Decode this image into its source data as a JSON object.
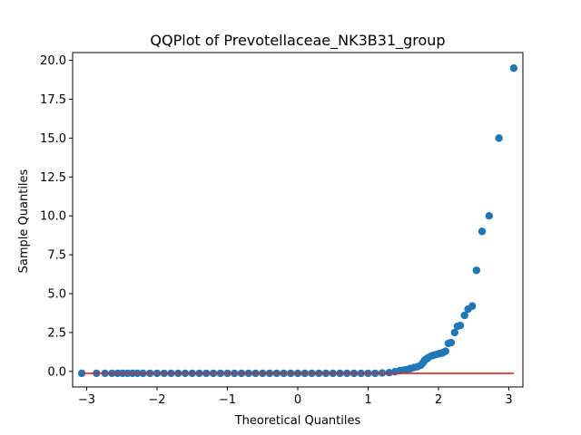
{
  "chart_data": {
    "type": "scatter",
    "title": "QQPlot of Prevotellaceae_NK3B31_group",
    "xlabel": "Theoretical Quantiles",
    "ylabel": "Sample Quantiles",
    "xlim": [
      -3.2,
      3.2
    ],
    "ylim": [
      -1.0,
      20.5
    ],
    "xticks": [
      -3,
      -2,
      -1,
      0,
      1,
      2,
      3
    ],
    "xtick_labels": [
      "−3",
      "−2",
      "−1",
      "0",
      "1",
      "2",
      "3"
    ],
    "yticks": [
      0.0,
      2.5,
      5.0,
      7.5,
      10.0,
      12.5,
      15.0,
      17.5,
      20.0
    ],
    "ytick_labels": [
      "0.0",
      "2.5",
      "5.0",
      "7.5",
      "10.0",
      "12.5",
      "15.0",
      "17.5",
      "20.0"
    ],
    "grid": false,
    "marker_color": "#1f77b4",
    "reference_line": {
      "color": "#d62728",
      "x": [
        -3.07,
        3.07
      ],
      "y": [
        -0.12,
        -0.12
      ]
    },
    "series": [
      {
        "points": [
          [
            -3.07,
            -0.12
          ],
          [
            -2.86,
            -0.12
          ],
          [
            -2.74,
            -0.12
          ],
          [
            -2.64,
            -0.12
          ],
          [
            -2.56,
            -0.12
          ],
          [
            -2.49,
            -0.12
          ],
          [
            -2.42,
            -0.12
          ],
          [
            -2.35,
            -0.12
          ],
          [
            -2.28,
            -0.12
          ],
          [
            -2.2,
            -0.12
          ],
          [
            -2.1,
            -0.12
          ],
          [
            -2.0,
            -0.12
          ],
          [
            -1.9,
            -0.12
          ],
          [
            -1.8,
            -0.12
          ],
          [
            -1.7,
            -0.12
          ],
          [
            -1.6,
            -0.12
          ],
          [
            -1.5,
            -0.12
          ],
          [
            -1.4,
            -0.12
          ],
          [
            -1.3,
            -0.12
          ],
          [
            -1.2,
            -0.12
          ],
          [
            -1.1,
            -0.12
          ],
          [
            -1.0,
            -0.12
          ],
          [
            -0.9,
            -0.12
          ],
          [
            -0.8,
            -0.12
          ],
          [
            -0.7,
            -0.12
          ],
          [
            -0.6,
            -0.12
          ],
          [
            -0.5,
            -0.12
          ],
          [
            -0.4,
            -0.12
          ],
          [
            -0.3,
            -0.12
          ],
          [
            -0.2,
            -0.12
          ],
          [
            -0.1,
            -0.12
          ],
          [
            0.0,
            -0.12
          ],
          [
            0.1,
            -0.12
          ],
          [
            0.2,
            -0.12
          ],
          [
            0.3,
            -0.12
          ],
          [
            0.4,
            -0.12
          ],
          [
            0.5,
            -0.12
          ],
          [
            0.6,
            -0.12
          ],
          [
            0.7,
            -0.12
          ],
          [
            0.8,
            -0.12
          ],
          [
            0.9,
            -0.12
          ],
          [
            1.0,
            -0.12
          ],
          [
            1.1,
            -0.12
          ],
          [
            1.2,
            -0.1
          ],
          [
            1.3,
            -0.08
          ],
          [
            1.38,
            -0.02
          ],
          [
            1.45,
            0.05
          ],
          [
            1.5,
            0.08
          ],
          [
            1.55,
            0.12
          ],
          [
            1.6,
            0.18
          ],
          [
            1.65,
            0.25
          ],
          [
            1.7,
            0.3
          ],
          [
            1.75,
            0.4
          ],
          [
            1.78,
            0.55
          ],
          [
            1.8,
            0.7
          ],
          [
            1.83,
            0.8
          ],
          [
            1.86,
            0.9
          ],
          [
            1.9,
            1.0
          ],
          [
            1.94,
            1.05
          ],
          [
            1.98,
            1.1
          ],
          [
            2.02,
            1.15
          ],
          [
            2.06,
            1.2
          ],
          [
            2.1,
            1.3
          ],
          [
            2.14,
            1.8
          ],
          [
            2.18,
            1.85
          ],
          [
            2.23,
            2.5
          ],
          [
            2.27,
            2.9
          ],
          [
            2.31,
            2.95
          ],
          [
            2.37,
            3.6
          ],
          [
            2.42,
            4.0
          ],
          [
            2.48,
            4.2
          ],
          [
            2.54,
            6.5
          ],
          [
            2.62,
            9.0
          ],
          [
            2.72,
            10.0
          ],
          [
            2.86,
            15.0
          ],
          [
            3.07,
            19.5
          ]
        ]
      }
    ]
  }
}
